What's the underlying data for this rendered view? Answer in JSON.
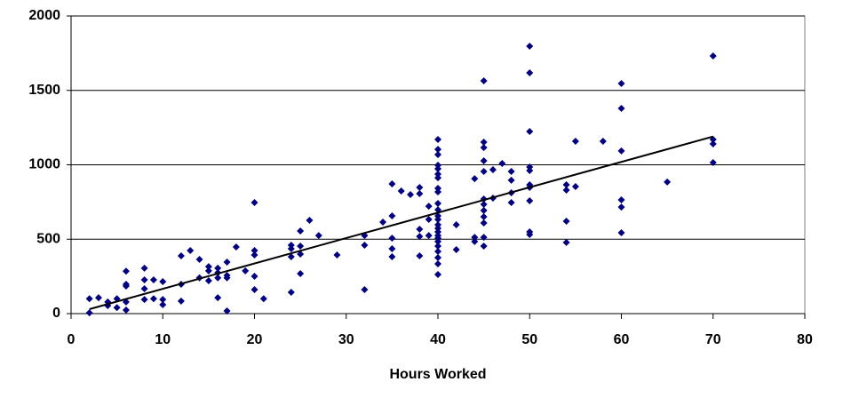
{
  "chart_data": {
    "type": "scatter",
    "xlabel": "Hours Worked",
    "series": [
      {
        "color": "#000080",
        "x": [
          2,
          2,
          3,
          4,
          4,
          5,
          5,
          6,
          6,
          6,
          6,
          6,
          8,
          8,
          8,
          8,
          9,
          9,
          10,
          10,
          10,
          12,
          12,
          12,
          13,
          14,
          14,
          15,
          15,
          15,
          16,
          16,
          16,
          16,
          17,
          17,
          17,
          17,
          18,
          19,
          20,
          20,
          20,
          20,
          20,
          21,
          24,
          24,
          24,
          24,
          25,
          25,
          25,
          25,
          26,
          27,
          29,
          32,
          32,
          32,
          34,
          35,
          35,
          35,
          35,
          35,
          36,
          37,
          38,
          38,
          38,
          38,
          38,
          39,
          39,
          39,
          40,
          40,
          40,
          40,
          40,
          40,
          40,
          40,
          40,
          40,
          40,
          40,
          40,
          40,
          40,
          40,
          40,
          40,
          40,
          40,
          40,
          40,
          40,
          40,
          42,
          42,
          44,
          44,
          44,
          45,
          45,
          45,
          45,
          45,
          45,
          45,
          45,
          45,
          45,
          45,
          45,
          46,
          46,
          47,
          48,
          48,
          48,
          48,
          50,
          50,
          50,
          50,
          50,
          50,
          50,
          50,
          50,
          50,
          54,
          54,
          54,
          54,
          55,
          55,
          58,
          60,
          60,
          60,
          60,
          60,
          60,
          65,
          70,
          70,
          70,
          70
        ],
        "values": [
          100,
          5,
          107,
          78,
          54,
          100,
          40,
          285,
          197,
          185,
          78,
          24,
          305,
          227,
          167,
          95,
          227,
          100,
          215,
          95,
          60,
          388,
          197,
          84,
          424,
          364,
          240,
          316,
          287,
          221,
          305,
          275,
          240,
          107,
          346,
          257,
          240,
          18,
          448,
          287,
          746,
          424,
          394,
          251,
          161,
          100,
          460,
          436,
          382,
          143,
          555,
          454,
          400,
          269,
          627,
          525,
          394,
          525,
          460,
          161,
          615,
          872,
          657,
          507,
          436,
          382,
          824,
          800,
          848,
          806,
          567,
          519,
          388,
          722,
          633,
          525,
          1170,
          1104,
          1069,
          997,
          973,
          937,
          913,
          842,
          818,
          740,
          698,
          657,
          633,
          597,
          573,
          549,
          525,
          507,
          484,
          454,
          418,
          376,
          334,
          263,
          597,
          430,
          907,
          513,
          484,
          1564,
          1152,
          1116,
          1027,
          955,
          770,
          734,
          693,
          651,
          609,
          513,
          454,
          967,
          776,
          1009,
          955,
          896,
          812,
          746,
          1797,
          1618,
          1224,
          985,
          961,
          866,
          848,
          758,
          549,
          531,
          866,
          830,
          621,
          478,
          1158,
          854,
          1158,
          1546,
          1379,
          1093,
          764,
          716,
          543,
          884,
          1731,
          1170,
          1140,
          1015
        ]
      }
    ],
    "trendline": {
      "color": "#000000",
      "x": [
        2,
        70
      ],
      "values": [
        30,
        1190
      ]
    },
    "xlim": [
      0,
      80
    ],
    "ylim": [
      0,
      2000
    ],
    "xticks": [
      0,
      10,
      20,
      30,
      40,
      50,
      60,
      70,
      80
    ],
    "yticks": [
      0,
      500,
      1000,
      1500,
      2000
    ],
    "grid": true
  }
}
